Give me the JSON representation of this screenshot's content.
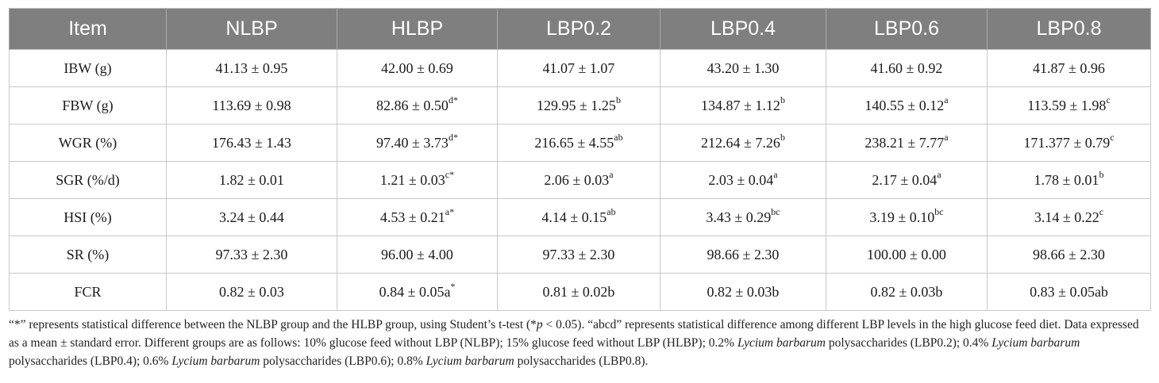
{
  "table": {
    "headers": [
      "Item",
      "NLBP",
      "HLBP",
      "LBP0.2",
      "LBP0.4",
      "LBP0.6",
      "LBP0.8"
    ],
    "rows": [
      {
        "item": "IBW (g)",
        "cells": [
          {
            "v": "41.13 ± 0.95",
            "s": ""
          },
          {
            "v": "42.00 ± 0.69",
            "s": ""
          },
          {
            "v": "41.07 ± 1.07",
            "s": ""
          },
          {
            "v": "43.20 ± 1.30",
            "s": ""
          },
          {
            "v": "41.60 ± 0.92",
            "s": ""
          },
          {
            "v": "41.87 ± 0.96",
            "s": ""
          }
        ]
      },
      {
        "item": "FBW (g)",
        "cells": [
          {
            "v": "113.69 ± 0.98",
            "s": ""
          },
          {
            "v": "82.86 ± 0.50",
            "s": "d*"
          },
          {
            "v": "129.95 ± 1.25",
            "s": "b"
          },
          {
            "v": "134.87 ± 1.12",
            "s": "b"
          },
          {
            "v": "140.55 ± 0.12",
            "s": "a"
          },
          {
            "v": "113.59 ± 1.98",
            "s": "c"
          }
        ]
      },
      {
        "item": "WGR (%)",
        "cells": [
          {
            "v": "176.43 ± 1.43",
            "s": ""
          },
          {
            "v": "97.40 ± 3.73",
            "s": "d*"
          },
          {
            "v": "216.65 ± 4.55",
            "s": "ab"
          },
          {
            "v": "212.64 ± 7.26",
            "s": "b"
          },
          {
            "v": "238.21 ± 7.77",
            "s": "a"
          },
          {
            "v": "171.377 ± 0.79",
            "s": "c"
          }
        ]
      },
      {
        "item": "SGR (%/d)",
        "cells": [
          {
            "v": "1.82 ± 0.01",
            "s": ""
          },
          {
            "v": "1.21 ± 0.03",
            "s": "c*"
          },
          {
            "v": "2.06 ± 0.03",
            "s": "a"
          },
          {
            "v": "2.03 ± 0.04",
            "s": "a"
          },
          {
            "v": "2.17 ± 0.04",
            "s": "a"
          },
          {
            "v": "1.78 ± 0.01",
            "s": "b"
          }
        ]
      },
      {
        "item": "HSI (%)",
        "cells": [
          {
            "v": "3.24 ± 0.44",
            "s": ""
          },
          {
            "v": "4.53 ± 0.21",
            "s": "a*"
          },
          {
            "v": "4.14 ± 0.15",
            "s": "ab"
          },
          {
            "v": "3.43 ± 0.29",
            "s": "bc"
          },
          {
            "v": "3.19 ± 0.10",
            "s": "bc"
          },
          {
            "v": "3.14 ± 0.22",
            "s": "c"
          }
        ]
      },
      {
        "item": "SR (%)",
        "cells": [
          {
            "v": "97.33 ± 2.30",
            "s": ""
          },
          {
            "v": "96.00 ± 4.00",
            "s": ""
          },
          {
            "v": "97.33 ± 2.30",
            "s": ""
          },
          {
            "v": "98.66 ± 2.30",
            "s": ""
          },
          {
            "v": "100.00 ± 0.00",
            "s": ""
          },
          {
            "v": "98.66 ± 2.30",
            "s": ""
          }
        ]
      },
      {
        "item": "FCR",
        "cells": [
          {
            "v": "0.82 ± 0.03",
            "s": ""
          },
          {
            "v": "0.84 ± 0.05a",
            "s": "*"
          },
          {
            "v": "0.81 ± 0.02b",
            "s": ""
          },
          {
            "v": "0.82 ± 0.03b",
            "s": ""
          },
          {
            "v": "0.82 ± 0.03b",
            "s": ""
          },
          {
            "v": "0.83 ± 0.05ab",
            "s": ""
          }
        ]
      }
    ]
  },
  "footnote": {
    "line1": "“*” represents statistical difference between the NLBP group and the HLBP group, using Student’s t-test (*",
    "line1_p": "p",
    "line1_end": " < 0.05). “abcd” represents statistical difference among different LBP levels in the high",
    "line2": "glucose feed diet. Data expressed as a mean ± standard error. Different groups are as follows: 10% glucose feed without LBP (NLBP); 15% glucose feed without LBP (HLBP); 0.2%",
    "species": "Lycium barbarum",
    "line3_a": " polysaccharides (LBP0.2); 0.4% ",
    "line3_b": " polysaccharides (LBP0.4); 0.6% ",
    "line3_c": " polysaccharides (LBP0.6); 0.8% ",
    "line3_d": " polysaccharides (LBP0.8)."
  },
  "colors": {
    "header_bg": "#7f7f7f",
    "header_text": "#ffffff",
    "grid": "#c9c9c9"
  }
}
